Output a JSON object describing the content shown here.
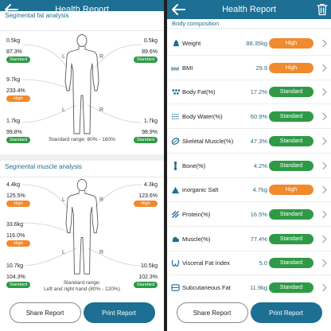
{
  "appbar": {
    "title": "Health Report"
  },
  "segmental_fat": {
    "title": "Segmental fat analysis",
    "left_arm": {
      "weight": "0.5kg",
      "percent": "87.3%",
      "status": "Standard"
    },
    "right_arm": {
      "weight": "0.5kg",
      "percent": "89.6%",
      "status": "Standard"
    },
    "trunk": {
      "weight": "9.7kg",
      "percent": "233.4%",
      "status": "High"
    },
    "left_leg": {
      "weight": "1.7kg",
      "percent": "99.8%",
      "status": "Standard"
    },
    "right_leg": {
      "weight": "1.7kg",
      "percent": "98.9%",
      "status": "Standard"
    },
    "range_note": "Standard range: 80% - 160%",
    "l_label": "L",
    "r_label": "R"
  },
  "segmental_muscle": {
    "title": "Segmental muscle analysis",
    "left_arm": {
      "weight": "4.4kg",
      "percent": "125.5%",
      "status": "High"
    },
    "right_arm": {
      "weight": "4.3kg",
      "percent": "123.6%",
      "status": "High"
    },
    "trunk": {
      "weight": "33.6kg",
      "percent": "116.0%",
      "status": "High"
    },
    "left_leg": {
      "weight": "10.7kg",
      "percent": "104.3%",
      "status": "Standard"
    },
    "right_leg": {
      "weight": "10.5kg",
      "percent": "102.3%",
      "status": "Standard"
    },
    "range_note_1": "Standard range:",
    "range_note_2": "Left and right hand (80% - 120%)",
    "l_label": "L",
    "r_label": "R"
  },
  "buttons": {
    "share": "Share Report",
    "print": "Print Report"
  },
  "body_composition": {
    "title": "Body composition",
    "rows": [
      {
        "name": "Weight",
        "value": "88.35kg",
        "status": "High",
        "color": "orange",
        "icon": "weight-icon"
      },
      {
        "name": "BMI",
        "value": "29.9",
        "status": "High",
        "color": "orange",
        "icon": "bmi-icon"
      },
      {
        "name": "Body Fat(%)",
        "value": "17.2%",
        "status": "Standard",
        "color": "green",
        "icon": "body-fat-icon"
      },
      {
        "name": "Body Water(%)",
        "value": "60.9%",
        "status": "Standard",
        "color": "green",
        "icon": "body-water-icon"
      },
      {
        "name": "Skeletal Muscle(%)",
        "value": "47.3%",
        "status": "Standard",
        "color": "green",
        "icon": "skeletal-muscle-icon"
      },
      {
        "name": "Bone(%)",
        "value": "4.2%",
        "status": "Standard",
        "color": "green",
        "icon": "bone-icon"
      },
      {
        "name": "inorganic Salt",
        "value": "4.7kg",
        "status": "High",
        "color": "orange",
        "icon": "inorganic-salt-icon"
      },
      {
        "name": "Protein(%)",
        "value": "16.5%",
        "status": "Standard",
        "color": "green",
        "icon": "protein-icon"
      },
      {
        "name": "Muscle(%)",
        "value": "77.4%",
        "status": "Standard",
        "color": "green",
        "icon": "muscle-icon"
      },
      {
        "name": "Visceral Fat Index",
        "value": "5.0",
        "status": "Standard",
        "color": "green",
        "icon": "visceral-fat-icon"
      },
      {
        "name": "Subcutaneous Fat",
        "value": "11.9kg",
        "status": "Standard",
        "color": "green",
        "icon": "subcutaneous-fat-icon"
      }
    ]
  },
  "colors": {
    "accent": "#1d6f93",
    "standard": "#2e9a46",
    "high": "#f08a2c"
  }
}
